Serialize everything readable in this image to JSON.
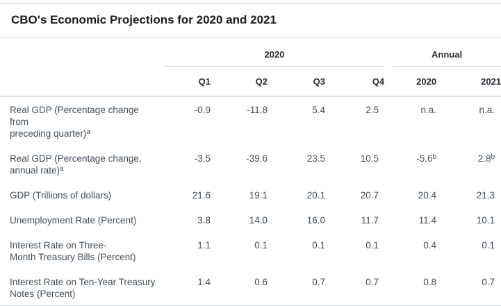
{
  "chart_data": {
    "type": "table",
    "title": "CBO's Economic Projections for 2020 and 2021",
    "col_groups": [
      {
        "label": "2020",
        "span": 4
      },
      {
        "label": "Annual",
        "span": 2
      }
    ],
    "columns": [
      "Q1",
      "Q2",
      "Q3",
      "Q4",
      "2020",
      "2021"
    ],
    "rows": [
      {
        "label": "Real GDP (Percentage change from\npreceding quarter)",
        "label_sup": "a",
        "values": [
          {
            "v": "-0.9"
          },
          {
            "v": "-11.8"
          },
          {
            "v": "5.4"
          },
          {
            "v": "2.5"
          },
          {
            "v": "n.a."
          },
          {
            "v": "n.a."
          }
        ]
      },
      {
        "label": "Real GDP (Percentage change,\nannual rate)",
        "label_sup": "a",
        "values": [
          {
            "v": "-3.5"
          },
          {
            "v": "-39.6"
          },
          {
            "v": "23.5"
          },
          {
            "v": "10.5"
          },
          {
            "v": "-5.6",
            "sup": "b"
          },
          {
            "v": "2.8",
            "sup": "b"
          }
        ]
      },
      {
        "label": "GDP (Trillions of dollars)",
        "label_sup": "",
        "values": [
          {
            "v": "21.6"
          },
          {
            "v": "19.1"
          },
          {
            "v": "20.1"
          },
          {
            "v": "20.7"
          },
          {
            "v": "20.4"
          },
          {
            "v": "21.3"
          }
        ]
      },
      {
        "label": "Unemployment Rate (Percent)",
        "label_sup": "",
        "values": [
          {
            "v": "3.8"
          },
          {
            "v": "14.0"
          },
          {
            "v": "16.0"
          },
          {
            "v": "11.7"
          },
          {
            "v": "11.4"
          },
          {
            "v": "10.1"
          }
        ]
      },
      {
        "label": "Interest Rate on Three-\nMonth Treasury Bills (Percent)",
        "label_sup": "",
        "values": [
          {
            "v": "1.1"
          },
          {
            "v": "0.1"
          },
          {
            "v": "0.1"
          },
          {
            "v": "0.1"
          },
          {
            "v": "0.4"
          },
          {
            "v": "0.1"
          }
        ]
      },
      {
        "label": "Interest Rate on Ten-Year Treasury\nNotes (Percent)",
        "label_sup": "",
        "values": [
          {
            "v": "1.4"
          },
          {
            "v": "0.6"
          },
          {
            "v": "0.7"
          },
          {
            "v": "0.7"
          },
          {
            "v": "0.8"
          },
          {
            "v": "0.7"
          }
        ]
      }
    ],
    "colors": {
      "title_text": "#1b1b1b",
      "header_text": "#272e35",
      "body_text": "#414e58",
      "rule_light": "#d6d6d6",
      "rule_header": "#a8afb4"
    }
  }
}
